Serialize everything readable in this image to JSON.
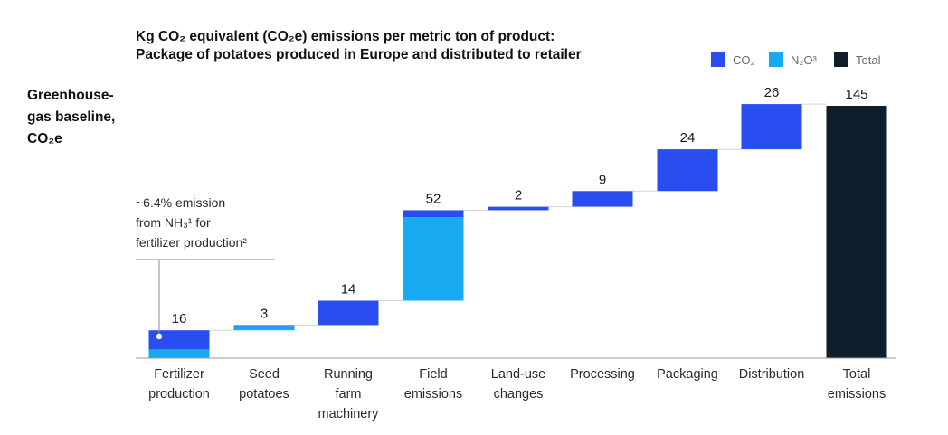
{
  "chart_data": {
    "type": "bar",
    "subtype": "waterfall",
    "title_lines": [
      "Kg CO₂ equivalent (CO₂e) emissions per metric ton of product:",
      "Package of potatoes produced in Europe and distributed to retailer"
    ],
    "ylabel_lines": [
      "Greenhouse-",
      "gas baseline,",
      "CO₂e"
    ],
    "legend_position": "top-right",
    "legend": [
      {
        "label": "CO₂",
        "color": "#2a4df0"
      },
      {
        "label": "N₂O³",
        "color": "#18aaf0"
      },
      {
        "label": "Total",
        "color": "#0f1e2b"
      }
    ],
    "categories": [
      [
        "Fertilizer",
        "production"
      ],
      [
        "Seed",
        "potatoes"
      ],
      [
        "Running",
        "farm",
        "machinery"
      ],
      [
        "Field",
        "emissions"
      ],
      [
        "Land-use",
        "changes"
      ],
      [
        "Processing"
      ],
      [
        "Packaging"
      ],
      [
        "Distribution"
      ],
      [
        "Total",
        "emissions"
      ]
    ],
    "series": [
      {
        "name": "CO₂",
        "values": [
          11,
          1,
          14,
          4,
          2,
          9,
          24,
          26,
          null
        ]
      },
      {
        "name": "N₂O³",
        "values": [
          5,
          2,
          0,
          48,
          0,
          0,
          0,
          0,
          null
        ]
      },
      {
        "name": "Total",
        "values": [
          null,
          null,
          null,
          null,
          null,
          null,
          null,
          null,
          145
        ]
      }
    ],
    "value_labels": [
      "16",
      "3",
      "14",
      "52",
      "2",
      "9",
      "24",
      "26",
      "145"
    ],
    "annotation": {
      "lines": [
        "~6.4% emission",
        "from NH₃¹ for",
        "fertilizer production²"
      ],
      "category_index": 0
    },
    "ylim": [
      0,
      145
    ],
    "grid": false
  }
}
